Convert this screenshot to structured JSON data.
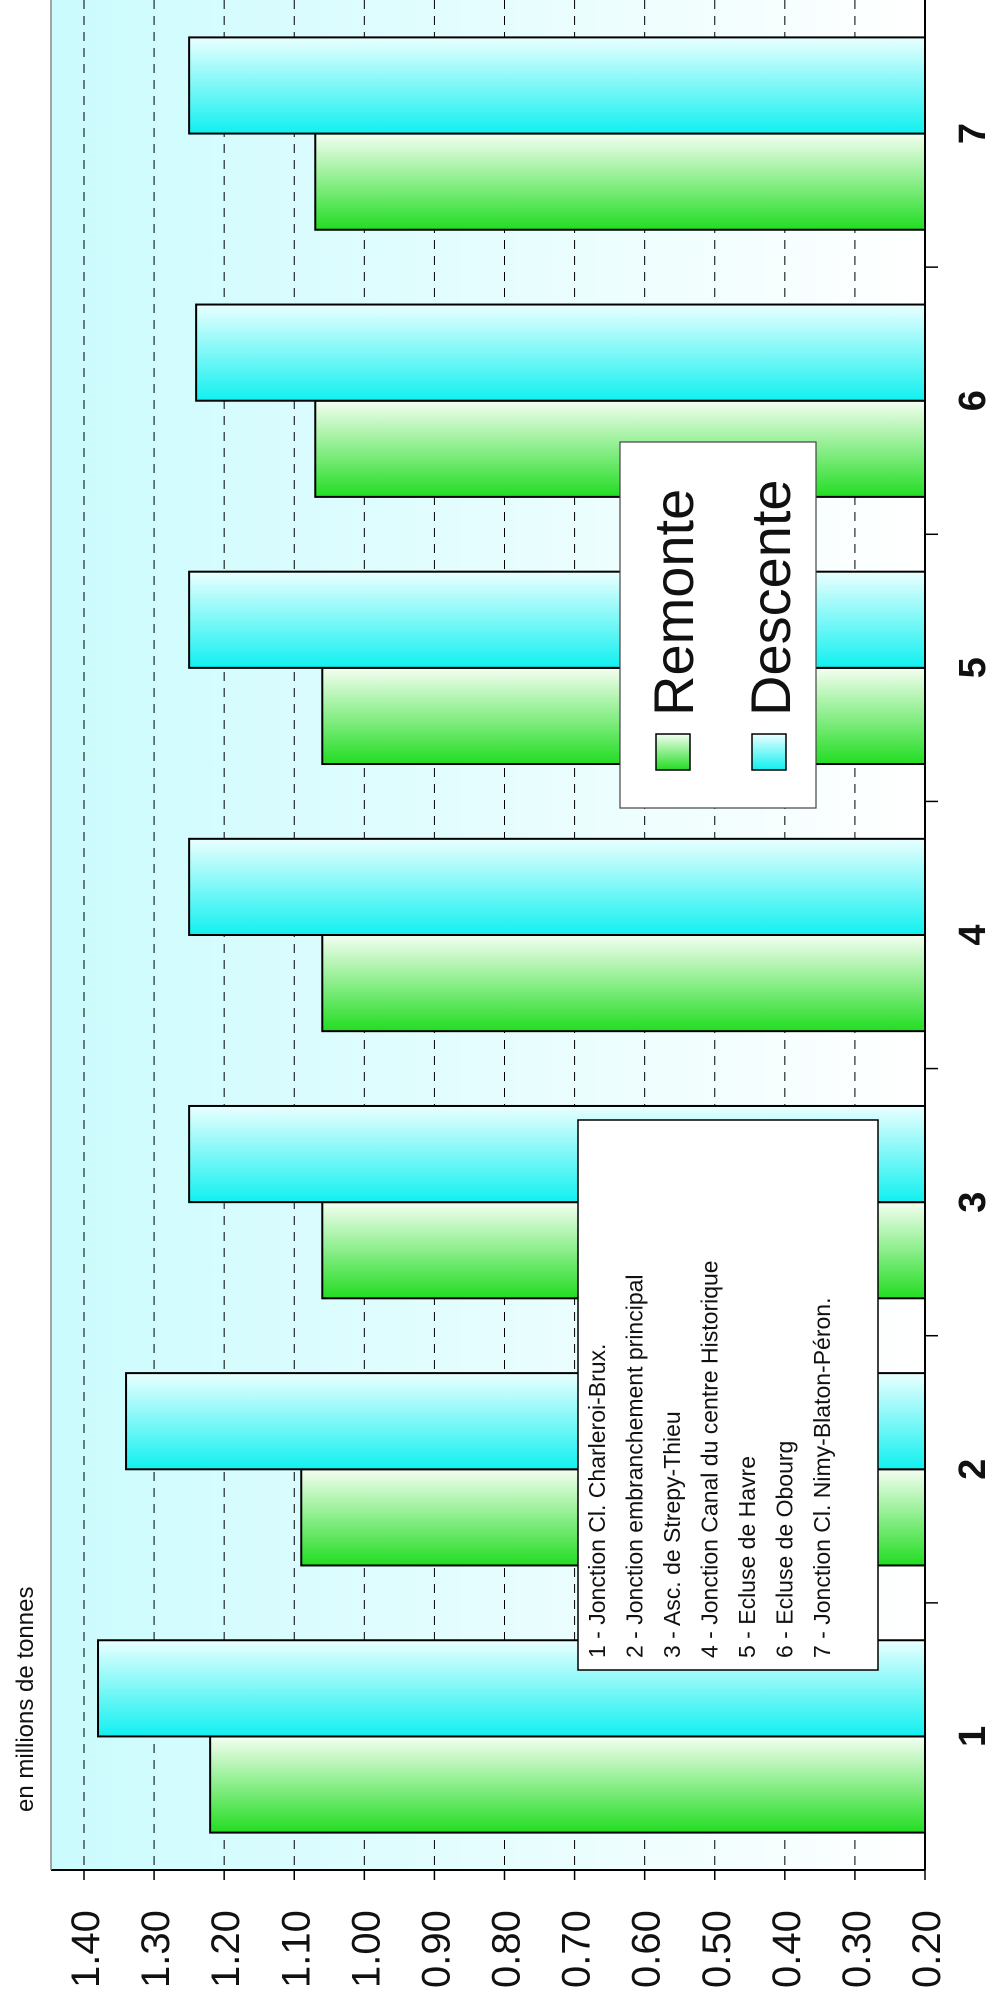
{
  "chart_data": {
    "type": "bar",
    "orientation": "rotated-90-ccw",
    "ylabel": "en millions de tonnes",
    "ylim": [
      0.2,
      1.4
    ],
    "y_ticks": [
      "0.20",
      "0.30",
      "0.40",
      "0.50",
      "0.60",
      "0.70",
      "0.80",
      "0.90",
      "1.00",
      "1.10",
      "1.20",
      "1.30",
      "1.40"
    ],
    "grid": true,
    "categories": [
      "1",
      "2",
      "3",
      "4",
      "5",
      "6",
      "7"
    ],
    "series": [
      {
        "name": "Remonte",
        "color_light": "#f4fff2",
        "color_dark": "#22dd22",
        "values": [
          1.22,
          1.09,
          1.06,
          1.06,
          1.06,
          1.07,
          1.07
        ]
      },
      {
        "name": "Descente",
        "color_light": "#eaffff",
        "color_dark": "#11f0f0",
        "values": [
          1.38,
          1.34,
          1.25,
          1.25,
          1.25,
          1.24,
          1.25
        ]
      }
    ],
    "legend_placement": "center-right",
    "annotation_lines": [
      "1  - Jonction Cl. Charleroi-Brux.",
      "2  - Jonction embranchement principal",
      "3  - Asc. de Strepy-Thieu",
      "4  - Jonction Canal du centre Historique",
      "5  - Ecluse de Havre",
      "6  - Ecluse de Obourg",
      "7  - Jonction Cl. Nimy-Blaton-Péron."
    ]
  }
}
